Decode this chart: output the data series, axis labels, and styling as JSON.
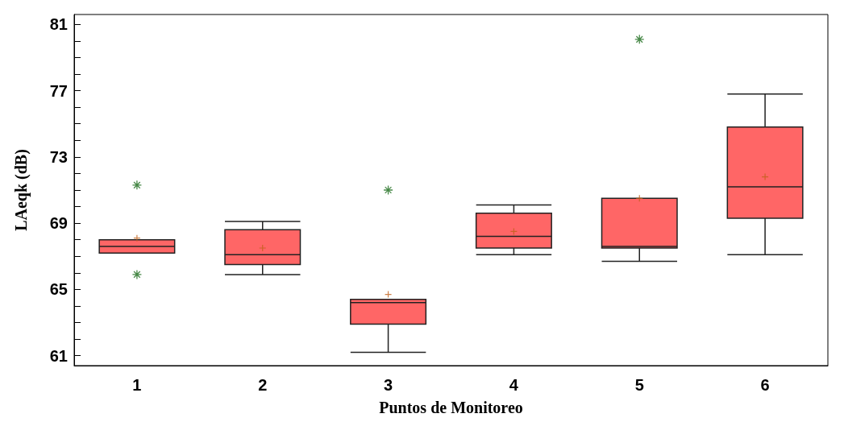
{
  "chart_data": {
    "type": "box",
    "xlabel": "Puntos de Monitoreo",
    "ylabel": "LAeqk (dB)",
    "categories": [
      "1",
      "2",
      "3",
      "4",
      "5",
      "6"
    ],
    "color": "#ff6666",
    "marker": "cross",
    "grid": false,
    "boxes": [
      {
        "low": 67.2,
        "q1": 67.2,
        "median": 67.6,
        "q3": 68.0,
        "high": 68.0,
        "mean": 68.1,
        "outliers": [
          71.3,
          65.9
        ]
      },
      {
        "low": 65.9,
        "q1": 66.5,
        "median": 67.1,
        "q3": 68.6,
        "high": 69.1,
        "mean": 67.5
      },
      {
        "low": 61.2,
        "q1": 62.9,
        "median": 64.2,
        "q3": 64.4,
        "high": 64.4,
        "mean": 64.7,
        "outliers": [
          71.0
        ]
      },
      {
        "low": 67.1,
        "q1": 67.5,
        "median": 68.2,
        "q3": 69.6,
        "high": 70.1,
        "mean": 68.5
      },
      {
        "low": 66.7,
        "q1": 67.5,
        "median": 67.6,
        "q3": 70.5,
        "high": 70.5,
        "mean": 70.5,
        "outliers": [
          80.1
        ]
      },
      {
        "low": 67.1,
        "q1": 69.3,
        "median": 71.2,
        "q3": 74.8,
        "high": 76.8,
        "mean": 71.8
      }
    ],
    "ylim": [
      60.4,
      81.6
    ],
    "yticks": [
      61,
      {
        "value": 62,
        "label": null
      },
      {
        "value": 63,
        "label": null
      },
      {
        "value": 64,
        "label": null
      },
      65,
      {
        "value": 66,
        "label": null
      },
      {
        "value": 67,
        "label": null
      },
      {
        "value": 68,
        "label": null
      },
      69,
      {
        "value": 70,
        "label": null
      },
      {
        "value": 71,
        "label": null
      },
      {
        "value": 72,
        "label": null
      },
      73,
      {
        "value": 74,
        "label": null
      },
      {
        "value": 75,
        "label": null
      },
      {
        "value": 76,
        "label": null
      },
      77,
      {
        "value": 78,
        "label": null
      },
      {
        "value": 79,
        "label": null
      },
      {
        "value": 80,
        "label": null
      },
      81
    ]
  }
}
